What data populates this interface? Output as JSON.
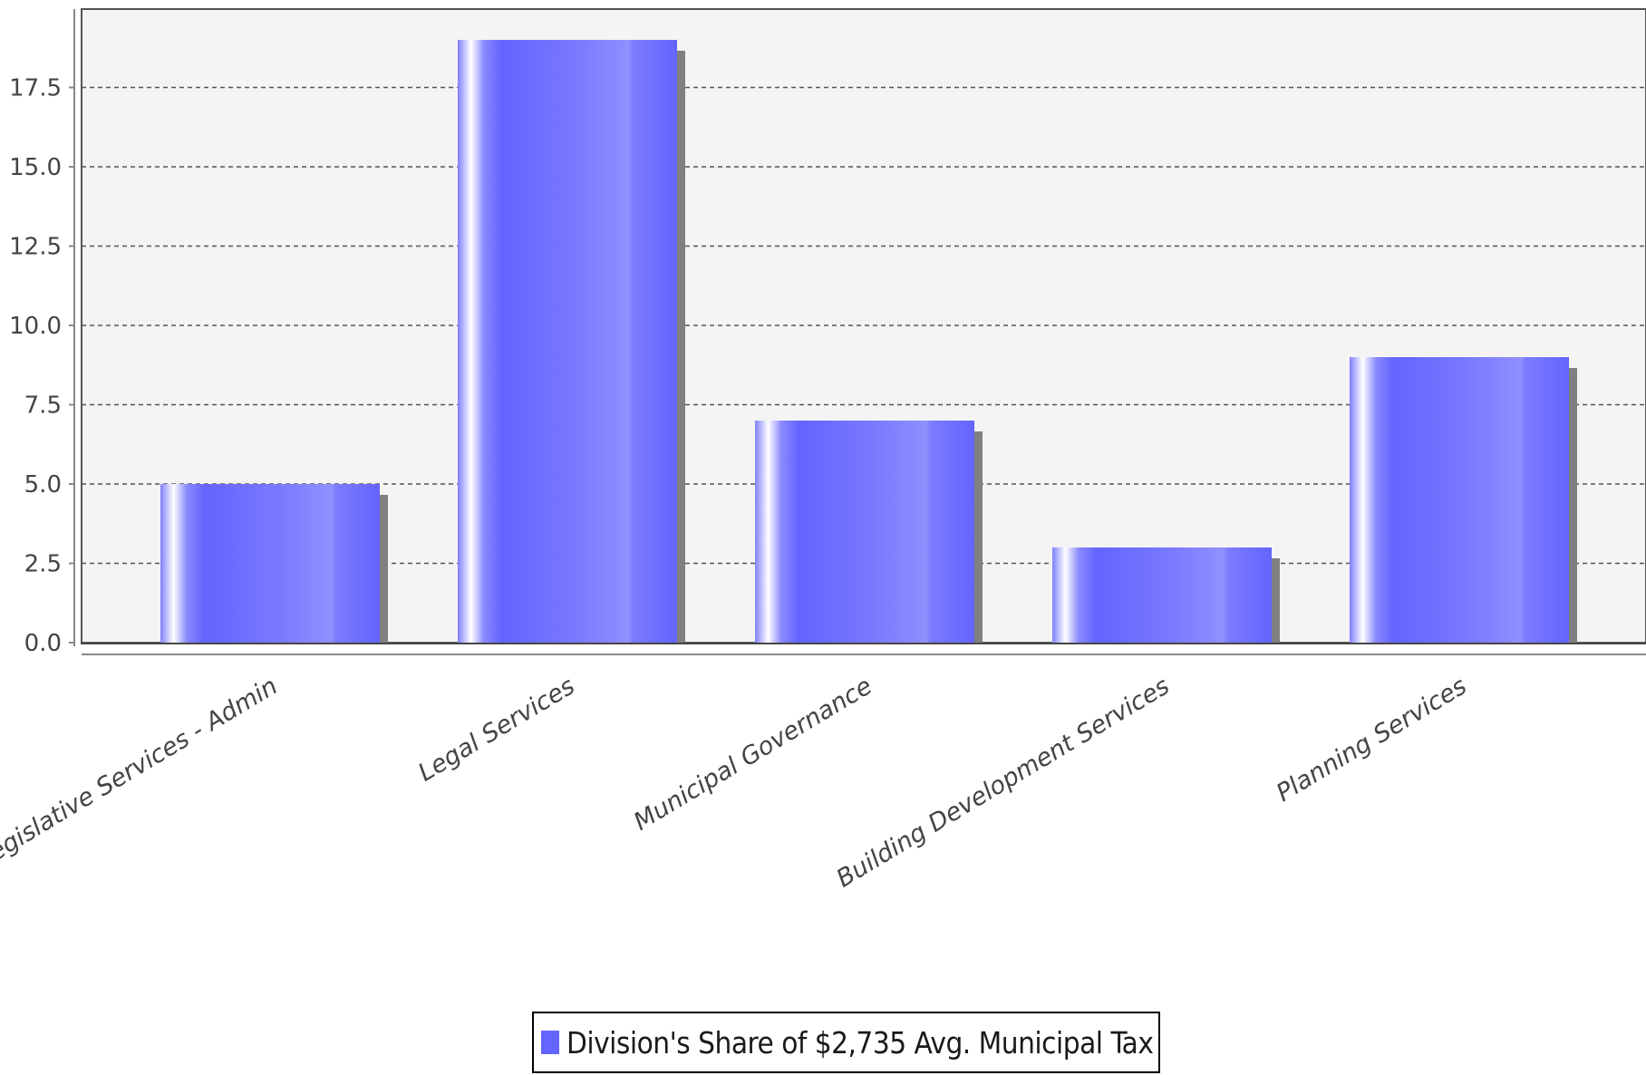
{
  "chart_data": {
    "type": "bar",
    "categories": [
      "Legislative Services - Admin",
      "Legal Services",
      "Municipal Governance",
      "Building Development Services",
      "Planning Services"
    ],
    "series": [
      {
        "name": "Division's Share of $2,735 Avg. Municipal Tax",
        "values": [
          5.0,
          19.0,
          7.0,
          3.0,
          9.0
        ]
      }
    ],
    "ylim": [
      0,
      20
    ],
    "yticks": [
      "0.0",
      "2.5",
      "5.0",
      "7.5",
      "10.0",
      "12.5",
      "15.0",
      "17.5"
    ],
    "grid": true,
    "legend_position": "bottom-center",
    "colors": {
      "bar": "#6464ff",
      "bar_light": "#9090ff",
      "bar_highlight": "#ffffff",
      "shadow": "#808080",
      "plot_background": "#f4f4f4",
      "gridline": "#555555"
    }
  },
  "legend": {
    "label": "Division's Share of $2,735 Avg. Municipal Tax"
  }
}
